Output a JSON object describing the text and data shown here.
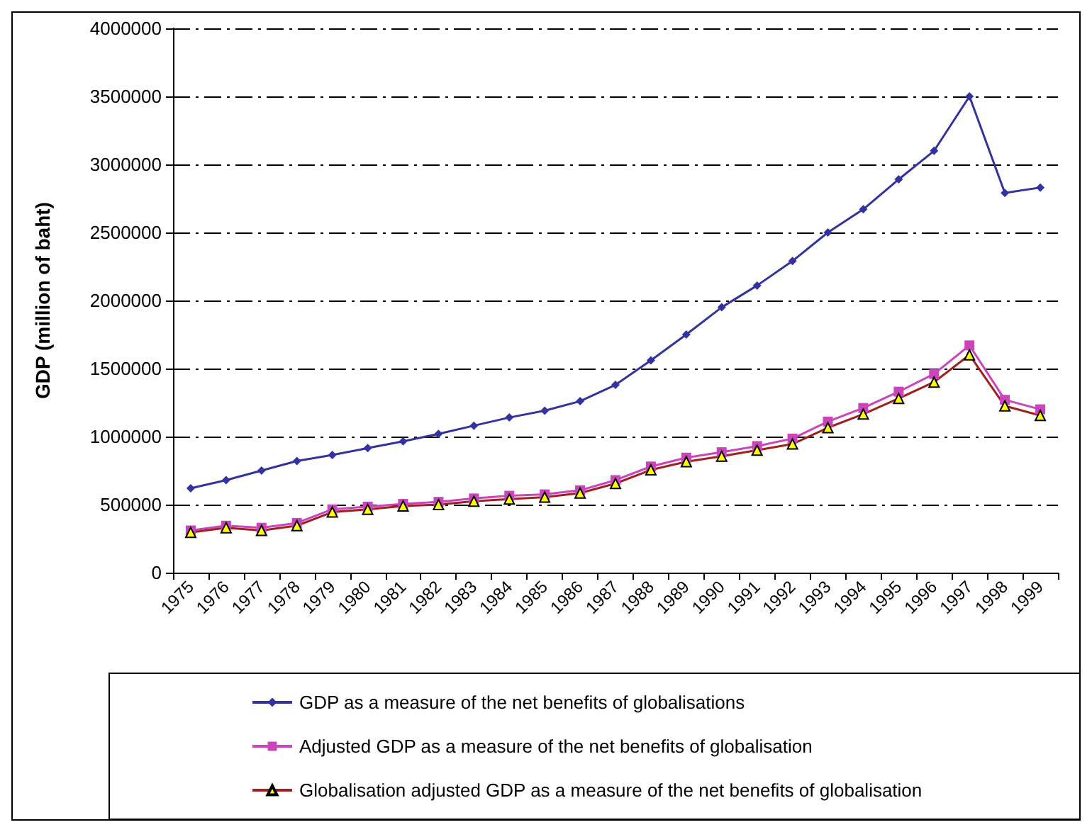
{
  "chart_data": {
    "type": "line",
    "ylabel": "GDP (million of baht)",
    "categories": [
      "1975",
      "1976",
      "1977",
      "1978",
      "1979",
      "1980",
      "1981",
      "1982",
      "1983",
      "1984",
      "1985",
      "1986",
      "1987",
      "1988",
      "1989",
      "1990",
      "1991",
      "1992",
      "1993",
      "1994",
      "1995",
      "1996",
      "1997",
      "1998",
      "1999"
    ],
    "series": [
      {
        "name": "GDP as a measure of the net benefits of globalisations",
        "color": "#3333a0",
        "marker": "diamond",
        "values": [
          620000,
          680000,
          750000,
          820000,
          865000,
          915000,
          965000,
          1020000,
          1080000,
          1140000,
          1190000,
          1260000,
          1380000,
          1560000,
          1750000,
          1950000,
          2110000,
          2290000,
          2500000,
          2670000,
          2890000,
          3100000,
          3500000,
          2790000,
          2830000
        ]
      },
      {
        "name": "Adjusted GDP as a measure of the net benefits of globalisation",
        "color": "#cc44bb",
        "marker": "square",
        "values": [
          310000,
          345000,
          330000,
          365000,
          465000,
          485000,
          505000,
          520000,
          545000,
          565000,
          575000,
          605000,
          680000,
          780000,
          845000,
          885000,
          930000,
          985000,
          1110000,
          1210000,
          1330000,
          1460000,
          1670000,
          1270000,
          1200000
        ]
      },
      {
        "name": "Globalisation adjusted GDP as a measure of the net benefits of globalisation",
        "color": "#a02020",
        "marker": "triangle",
        "values": [
          295000,
          330000,
          310000,
          345000,
          445000,
          465000,
          490000,
          500000,
          525000,
          540000,
          555000,
          585000,
          655000,
          755000,
          815000,
          855000,
          900000,
          945000,
          1065000,
          1165000,
          1280000,
          1400000,
          1600000,
          1225000,
          1155000
        ]
      }
    ],
    "ylim": [
      0,
      4000000
    ],
    "yticks": [
      0,
      500000,
      1000000,
      1500000,
      2000000,
      2500000,
      3000000,
      3500000,
      4000000
    ],
    "grid": "y",
    "legend": "bottom"
  }
}
